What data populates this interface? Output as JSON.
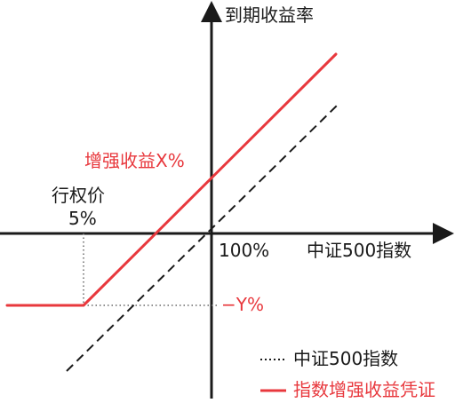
{
  "diagram": {
    "y_axis_label": "到期收益率",
    "x_axis_value_label": "100%",
    "x_axis_label": "中证500指数",
    "enhanced_return_label": "增强收益X%",
    "strike_label_line1": "行权价",
    "strike_label_line2": "5%",
    "loss_label": "−Y%",
    "colors": {
      "axis": "#1a1a1a",
      "index_line": "#1a1a1a",
      "note_line": "#e8383d",
      "guide": "#666666",
      "text": "#1a1a1a",
      "accent_text": "#e8383d"
    }
  },
  "legend": {
    "items": [
      {
        "label": "中证500指数",
        "style": "dashed",
        "color": "#1a1a1a"
      },
      {
        "label": "指数增强收益凭证",
        "style": "solid",
        "color": "#e8383d"
      }
    ]
  }
}
